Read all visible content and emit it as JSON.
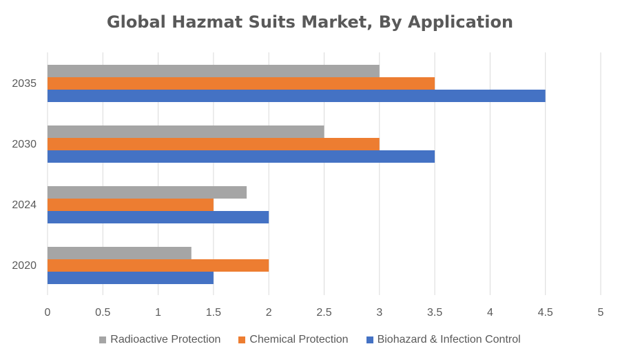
{
  "chart_data": {
    "type": "bar",
    "orientation": "horizontal",
    "title": "Global Hazmat Suits Market, By Application",
    "categories": [
      "2035",
      "2030",
      "2024",
      "2020"
    ],
    "series": [
      {
        "name": "Radioactive Protection",
        "color": "#a5a5a5",
        "values": [
          3.0,
          2.5,
          1.8,
          1.3
        ]
      },
      {
        "name": "Chemical Protection",
        "color": "#ed7d31",
        "values": [
          3.5,
          3.0,
          1.5,
          2.0
        ]
      },
      {
        "name": "Biohazard & Infection Control",
        "color": "#4472c4",
        "values": [
          4.5,
          3.5,
          2.0,
          1.5
        ]
      }
    ],
    "x_ticks": [
      "0",
      "0.5",
      "1",
      "1.5",
      "2",
      "2.5",
      "3",
      "3.5",
      "4",
      "4.5",
      "5"
    ],
    "xlim": [
      0,
      5
    ],
    "grid": true,
    "legend_position": "bottom"
  }
}
